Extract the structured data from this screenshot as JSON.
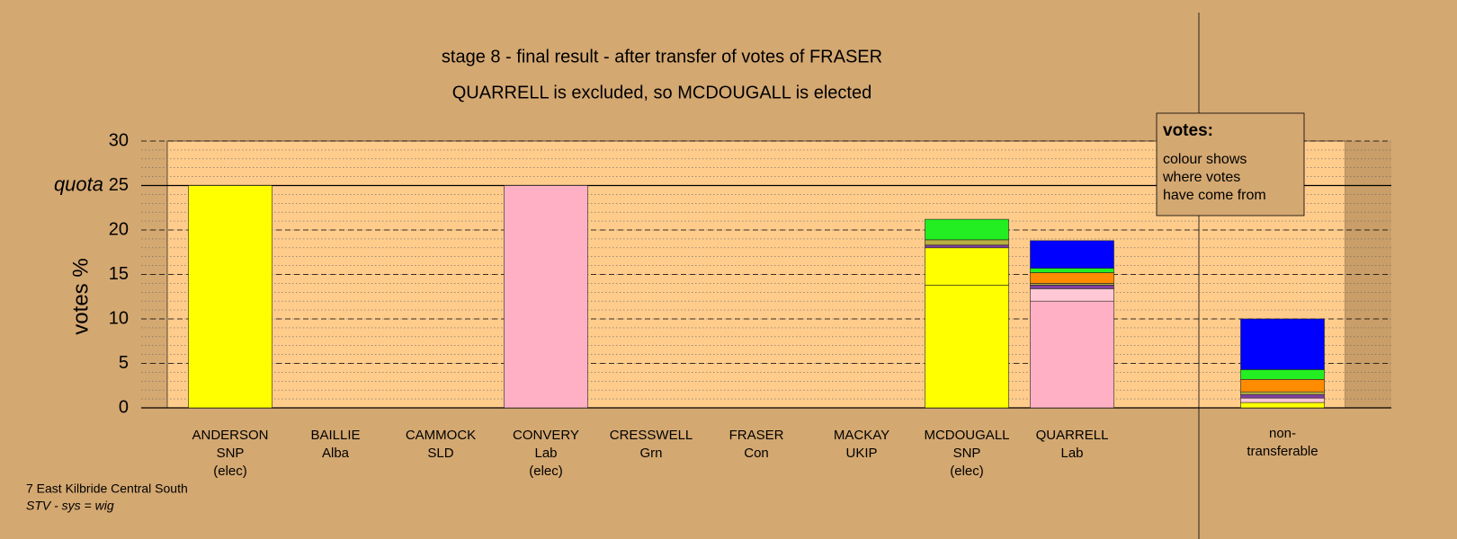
{
  "chart_data": {
    "type": "stacked_bar",
    "title": "stage 8 - final result - after transfer of votes of FRASER",
    "subtitle": "QUARRELL is excluded, so MCDOUGALL is elected",
    "y_label": "votes %",
    "categories": [
      [
        "ANDERSON",
        "SNP",
        "(elec)"
      ],
      [
        "BAILLIE",
        "Alba"
      ],
      [
        "CAMMOCK",
        "SLD"
      ],
      [
        "CONVERY",
        "Lab",
        "(elec)"
      ],
      [
        "CRESSWELL",
        "Grn"
      ],
      [
        "FRASER",
        "Con"
      ],
      [
        "MACKAY",
        "UKIP"
      ],
      [
        "MCDOUGALL",
        "SNP",
        "(elec)"
      ],
      [
        "QUARRELL",
        "Lab"
      ],
      [
        "non-",
        "transferable"
      ]
    ],
    "series": [
      {
        "color": "#ffff00",
        "values": [
          25,
          0,
          0,
          0,
          0,
          0,
          0,
          13.8,
          0,
          0.6
        ]
      },
      {
        "color": "#ffb0c4",
        "values": [
          0,
          0,
          0,
          25,
          0,
          0,
          0,
          0,
          12.0,
          0
        ]
      },
      {
        "color": "#ffff00",
        "values": [
          0,
          0,
          0,
          0,
          0,
          0,
          0,
          4.2,
          0,
          0
        ]
      },
      {
        "color": "#ffc8d4",
        "values": [
          0,
          0,
          0,
          0,
          0,
          0,
          0,
          0,
          1.4,
          0.5
        ]
      },
      {
        "color": "#8040a0",
        "values": [
          0,
          0,
          0,
          0,
          0,
          0,
          0,
          0.3,
          0.4,
          0.4
        ]
      },
      {
        "color": "#b8b040",
        "values": [
          0,
          0,
          0,
          0,
          0,
          0,
          0,
          0.6,
          0.2,
          0.3
        ]
      },
      {
        "color": "#ff8c00",
        "values": [
          0,
          0,
          0,
          0,
          0,
          0,
          0,
          0,
          1.2,
          1.4
        ]
      },
      {
        "color": "#22ee22",
        "values": [
          0,
          0,
          0,
          0,
          0,
          0,
          0,
          2.3,
          0.5,
          1.1
        ]
      },
      {
        "color": "#0000ff",
        "values": [
          0,
          0,
          0,
          0,
          0,
          0,
          0,
          0,
          3.1,
          5.7
        ]
      }
    ],
    "ylim": [
      0,
      30
    ],
    "yticks": [
      0,
      5,
      10,
      15,
      20,
      25,
      30
    ],
    "minor_grid_step": 1,
    "quota": 25,
    "quota_label": "quota",
    "legend": {
      "title": "votes:",
      "lines": [
        "colour shows",
        "where votes",
        "have come from"
      ]
    },
    "footer": [
      "7 East Kilbride Central South",
      "STV - sys = wig"
    ]
  }
}
